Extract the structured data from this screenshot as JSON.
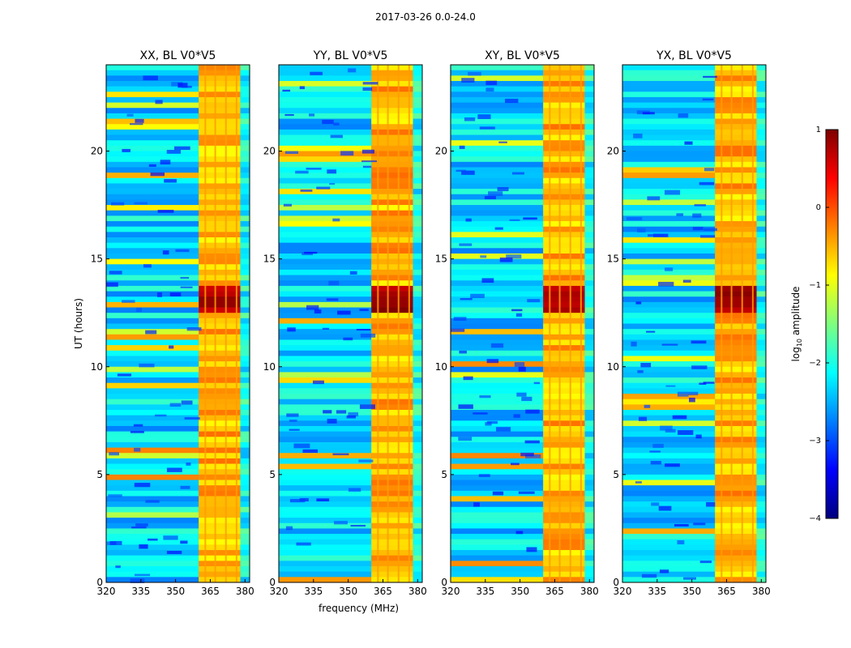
{
  "figure": {
    "suptitle": "2017-03-26 0.0-24.0"
  },
  "chart_data": [
    {
      "type": "heatmap",
      "title": "XX, BL V0*V5",
      "xlabel": "",
      "ylabel": "UT (hours)",
      "x_range": [
        320,
        382
      ],
      "y_range": [
        0,
        24
      ],
      "x_ticks": [
        "320",
        "335",
        "350",
        "365",
        "380"
      ],
      "y_ticks": [
        "0",
        "5",
        "10",
        "15",
        "20"
      ],
      "strong_band_mhz": [
        360,
        378
      ],
      "peak_ut_hours": [
        12.4,
        13.8
      ]
    },
    {
      "type": "heatmap",
      "title": "YY, BL V0*V5",
      "xlabel": "frequency (MHz)",
      "ylabel": "",
      "x_range": [
        320,
        382
      ],
      "y_range": [
        0,
        24
      ],
      "x_ticks": [
        "320",
        "335",
        "350",
        "365",
        "380"
      ],
      "y_ticks": [
        "0",
        "5",
        "10",
        "15",
        "20"
      ],
      "strong_band_mhz": [
        360,
        378
      ],
      "peak_ut_hours": [
        12.4,
        13.8
      ]
    },
    {
      "type": "heatmap",
      "title": "XY, BL V0*V5",
      "xlabel": "",
      "ylabel": "",
      "x_range": [
        320,
        382
      ],
      "y_range": [
        0,
        24
      ],
      "x_ticks": [
        "320",
        "335",
        "350",
        "365",
        "380"
      ],
      "y_ticks": [
        "0",
        "5",
        "10",
        "15",
        "20"
      ],
      "strong_band_mhz": [
        360,
        378
      ],
      "peak_ut_hours": [
        12.4,
        13.8
      ]
    },
    {
      "type": "heatmap",
      "title": "YX, BL V0*V5",
      "xlabel": "",
      "ylabel": "",
      "x_range": [
        320,
        382
      ],
      "y_range": [
        0,
        24
      ],
      "x_ticks": [
        "320",
        "335",
        "350",
        "365",
        "380"
      ],
      "y_ticks": [
        "0",
        "5",
        "10",
        "15",
        "20"
      ],
      "strong_band_mhz": [
        360,
        378
      ],
      "peak_ut_hours": [
        12.4,
        13.8
      ]
    }
  ],
  "colorbar": {
    "label_main": "log",
    "label_sub": "10",
    "label_rest": " amplitude",
    "range": [
      -4,
      1
    ],
    "tick_labels": [
      "1",
      "0",
      "−1",
      "−2",
      "−3",
      "−4"
    ],
    "colormap": "jet"
  },
  "colors": {
    "jet": [
      "#00007f",
      "#0000ff",
      "#007fff",
      "#00ffff",
      "#7fff7f",
      "#ffff00",
      "#ff7f00",
      "#ff0000",
      "#7f0000"
    ]
  }
}
